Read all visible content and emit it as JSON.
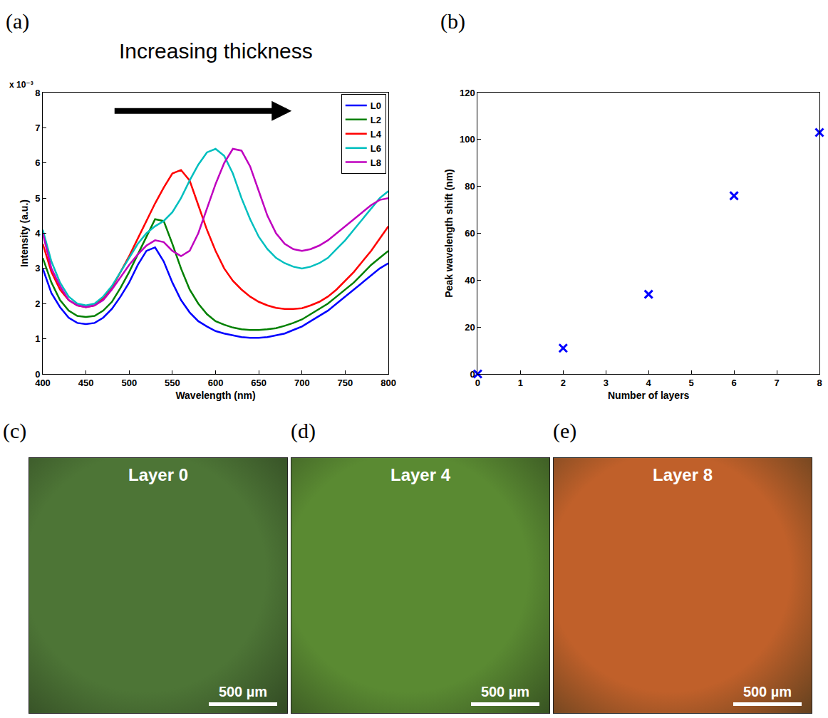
{
  "chart_data": [
    {
      "panel": "(a)",
      "type": "line",
      "title": "Increasing thickness",
      "x_label": "Wavelength (nm)",
      "y_label": "Intensity (a.u.)",
      "y_multiplier": "x 10⁻³",
      "x": [
        400,
        410,
        420,
        430,
        440,
        450,
        460,
        470,
        480,
        490,
        500,
        510,
        520,
        530,
        540,
        550,
        560,
        570,
        580,
        590,
        600,
        610,
        620,
        630,
        640,
        650,
        660,
        670,
        680,
        690,
        700,
        710,
        720,
        730,
        740,
        750,
        760,
        770,
        780,
        790,
        800
      ],
      "series": [
        {
          "name": "L0",
          "color": "#0000ff",
          "values": [
            0.003,
            0.0023,
            0.0019,
            0.0016,
            0.00145,
            0.00142,
            0.00145,
            0.0016,
            0.00185,
            0.0022,
            0.0026,
            0.0031,
            0.0035,
            0.0036,
            0.0032,
            0.0026,
            0.0021,
            0.00175,
            0.0015,
            0.00135,
            0.00122,
            0.00115,
            0.0011,
            0.00105,
            0.00103,
            0.00103,
            0.00105,
            0.0011,
            0.00115,
            0.00125,
            0.00135,
            0.0015,
            0.00165,
            0.0018,
            0.002,
            0.0022,
            0.0024,
            0.0026,
            0.0028,
            0.003,
            0.00315
          ]
        },
        {
          "name": "L2",
          "color": "#008000",
          "values": [
            0.0033,
            0.0026,
            0.0021,
            0.0018,
            0.00165,
            0.00162,
            0.00165,
            0.0018,
            0.00205,
            0.00245,
            0.0029,
            0.0034,
            0.0039,
            0.0044,
            0.00435,
            0.0037,
            0.003,
            0.0024,
            0.002,
            0.0017,
            0.0015,
            0.0014,
            0.00132,
            0.00127,
            0.00125,
            0.00125,
            0.00127,
            0.0013,
            0.00137,
            0.00145,
            0.00155,
            0.0017,
            0.00185,
            0.002,
            0.0022,
            0.0024,
            0.0026,
            0.00285,
            0.0031,
            0.0033,
            0.0035
          ]
        },
        {
          "name": "L4",
          "color": "#ff0000",
          "values": [
            0.0037,
            0.0029,
            0.0024,
            0.0021,
            0.00195,
            0.0019,
            0.00195,
            0.00215,
            0.00245,
            0.0029,
            0.00335,
            0.00385,
            0.00435,
            0.00485,
            0.0053,
            0.0057,
            0.0058,
            0.0055,
            0.0048,
            0.0041,
            0.0035,
            0.003,
            0.00265,
            0.0024,
            0.0022,
            0.00205,
            0.00195,
            0.00188,
            0.00185,
            0.00185,
            0.00187,
            0.00195,
            0.00205,
            0.0022,
            0.0024,
            0.00265,
            0.0029,
            0.0032,
            0.0035,
            0.00385,
            0.0042
          ]
        },
        {
          "name": "L6",
          "color": "#00bfbf",
          "values": [
            0.0041,
            0.0032,
            0.0026,
            0.0022,
            0.002,
            0.00195,
            0.002,
            0.0022,
            0.0025,
            0.0029,
            0.0033,
            0.0037,
            0.004,
            0.0042,
            0.00435,
            0.0046,
            0.005,
            0.0055,
            0.00595,
            0.0063,
            0.0064,
            0.0062,
            0.0057,
            0.005,
            0.0044,
            0.0039,
            0.00355,
            0.0033,
            0.00315,
            0.00305,
            0.003,
            0.00305,
            0.00315,
            0.0033,
            0.00355,
            0.0038,
            0.0041,
            0.0044,
            0.0047,
            0.005,
            0.0052
          ]
        },
        {
          "name": "L8",
          "color": "#bf00bf",
          "values": [
            0.004,
            0.003,
            0.0025,
            0.0021,
            0.00195,
            0.0019,
            0.00195,
            0.0021,
            0.0024,
            0.00275,
            0.0031,
            0.0034,
            0.00365,
            0.0038,
            0.00375,
            0.0035,
            0.00335,
            0.0035,
            0.004,
            0.0047,
            0.0054,
            0.006,
            0.0064,
            0.00635,
            0.0059,
            0.0052,
            0.0045,
            0.004,
            0.0037,
            0.00355,
            0.0035,
            0.00355,
            0.00365,
            0.0038,
            0.004,
            0.0042,
            0.0044,
            0.0046,
            0.0048,
            0.00495,
            0.005
          ]
        }
      ],
      "xlim": [
        400,
        800
      ],
      "xticks": [
        400,
        450,
        500,
        550,
        600,
        650,
        700,
        750,
        800
      ],
      "ylim": [
        0,
        0.008
      ],
      "yticks": [
        0,
        {
          "value": 0.001,
          "label": "1"
        },
        {
          "value": 0.002,
          "label": "2"
        },
        {
          "value": 0.003,
          "label": "3"
        },
        {
          "value": 0.004,
          "label": "4"
        },
        {
          "value": 0.005,
          "label": "5"
        },
        {
          "value": 0.006,
          "label": "6"
        },
        {
          "value": 0.007,
          "label": "7"
        },
        {
          "value": 0.008,
          "label": "8"
        }
      ],
      "legend": "top right",
      "grid": false,
      "line_style": "solid"
    },
    {
      "panel": "(b)",
      "type": "scatter",
      "x_label": "Number of layers",
      "y_label": "Peak wavelength shift (nm)",
      "x": [
        0,
        2,
        4,
        6,
        8
      ],
      "values": [
        0,
        11,
        34,
        76,
        103
      ],
      "color": "#0000ff",
      "marker": "x",
      "xlim": [
        0,
        8
      ],
      "xticks": [
        0,
        1,
        2,
        3,
        4,
        5,
        6,
        7,
        8
      ],
      "ylim": [
        0,
        120
      ],
      "yticks": [
        0,
        20,
        40,
        60,
        80,
        100,
        120
      ],
      "grid": false
    }
  ],
  "images": [
    {
      "panel": "(c)",
      "label": "Layer 0",
      "scale_bar": "500 µm",
      "color": "#4d7536"
    },
    {
      "panel": "(d)",
      "label": "Layer 4",
      "scale_bar": "500 µm",
      "color": "#5a8a32"
    },
    {
      "panel": "(e)",
      "label": "Layer 8",
      "scale_bar": "500 µm",
      "color": "#c0602a"
    }
  ]
}
